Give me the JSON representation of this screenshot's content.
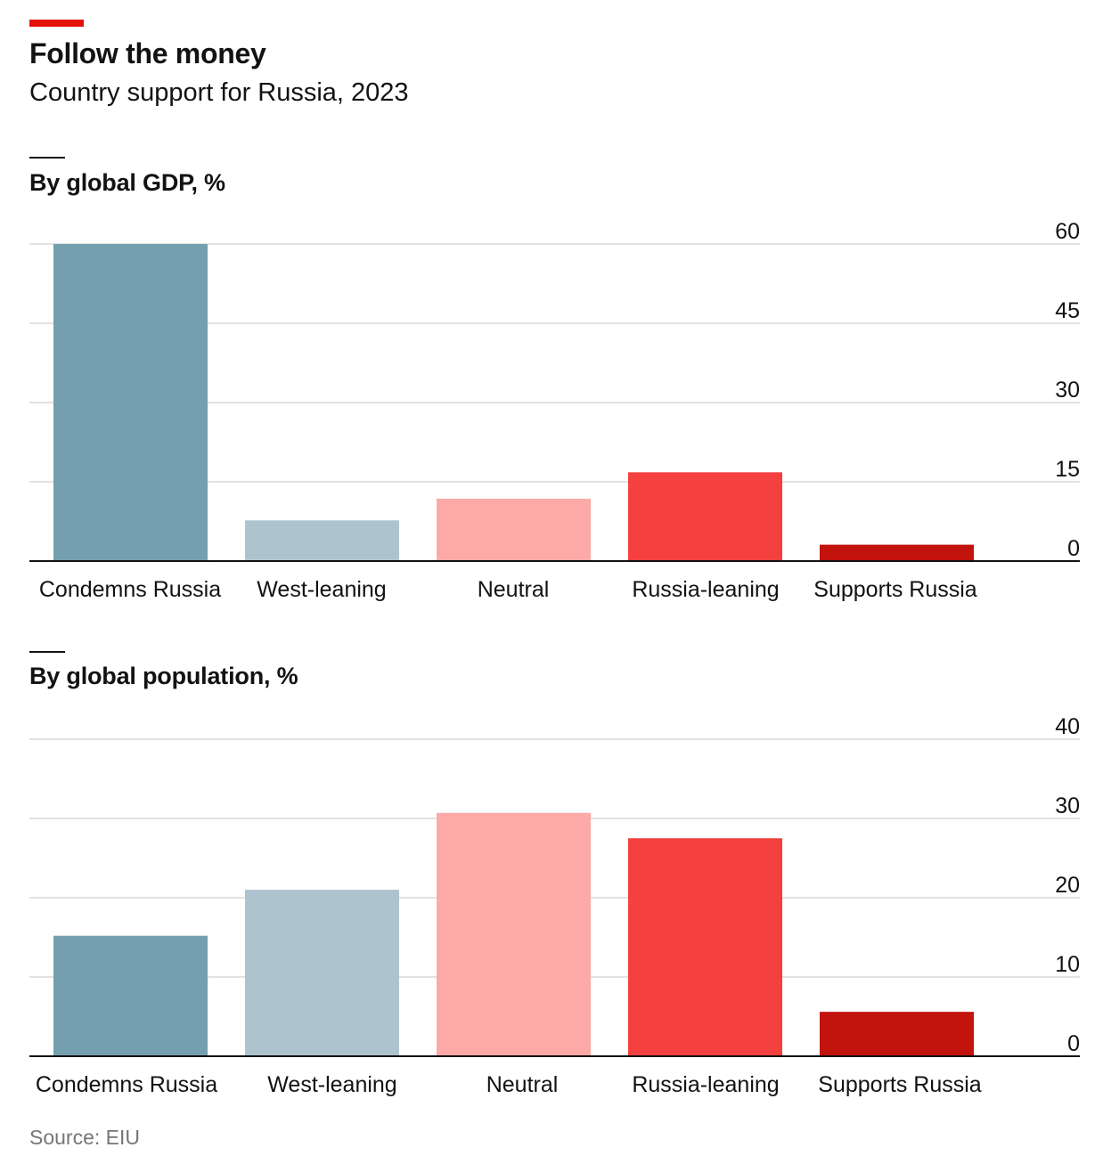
{
  "header": {
    "title": "Follow the money",
    "subtitle": "Country support for Russia, 2023"
  },
  "colors": {
    "accent": "#e3120b",
    "categories": [
      "#749fae",
      "#adc4cf",
      "#fca9a7",
      "#f4403e",
      "#c2130d"
    ],
    "grid": "#d9d9d9",
    "axis": "#121212"
  },
  "source": "Source: EIU",
  "chart_data": [
    {
      "type": "bar",
      "title": "By global GDP, %",
      "categories": [
        "Condemns Russia",
        "West-leaning",
        "Neutral",
        "Russia-leaning",
        "Supports Russia"
      ],
      "values": [
        60,
        7.7,
        11.8,
        16.8,
        3.1
      ],
      "ylim": [
        0,
        60
      ],
      "yticks": [
        0,
        15,
        30,
        45,
        60
      ],
      "grid": true
    },
    {
      "type": "bar",
      "title": "By global population, %",
      "categories": [
        "Condemns Russia",
        "West-leaning",
        "Neutral",
        "Russia-leaning",
        "Supports Russia"
      ],
      "values": [
        15.2,
        21.0,
        30.7,
        27.5,
        5.6
      ],
      "ylim": [
        0,
        40
      ],
      "yticks": [
        0,
        10,
        20,
        30,
        40
      ],
      "grid": true
    }
  ]
}
